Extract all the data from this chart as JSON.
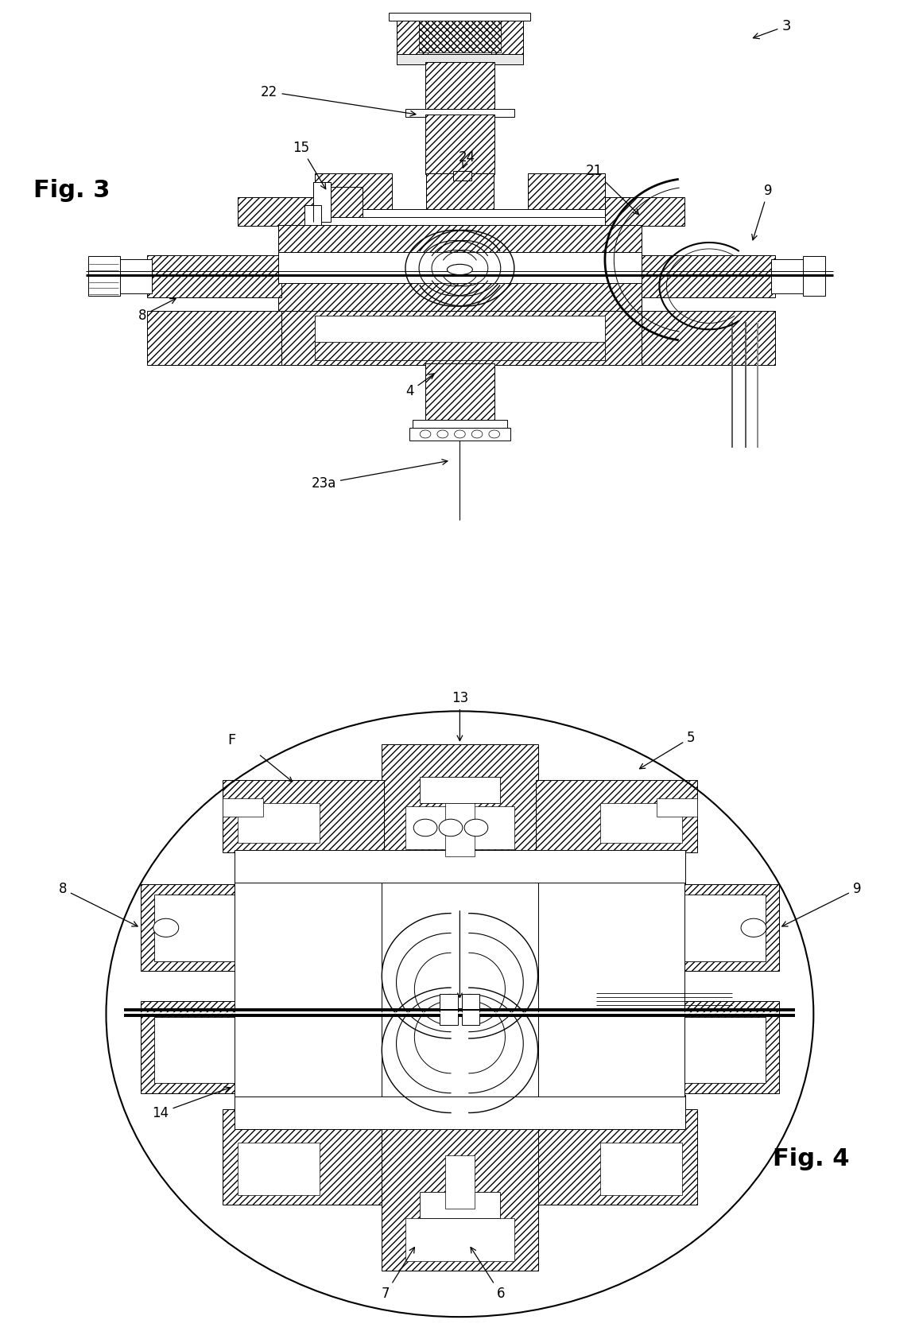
{
  "bg_color": "#ffffff",
  "fig3_label": "Fig. 3",
  "fig4_label": "Fig. 4"
}
